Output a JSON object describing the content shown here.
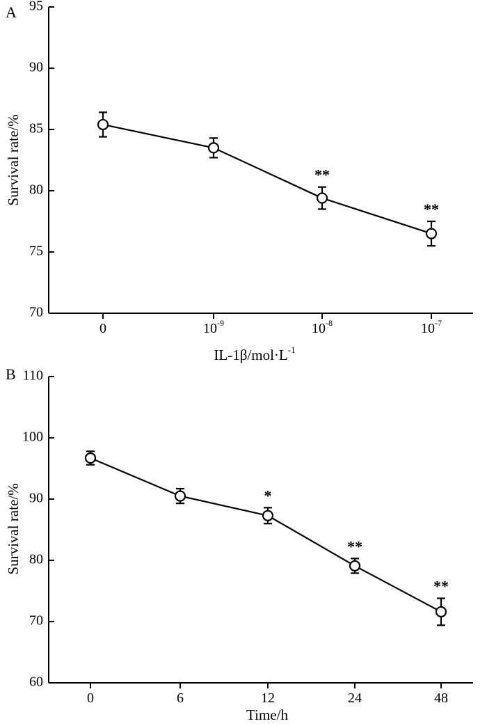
{
  "chart_data": [
    {
      "panel": "A",
      "type": "line",
      "ylabel": "Survival rate/%",
      "xlabel": "IL-1β/mol·L",
      "xlabel_sup": "-1",
      "categories": [
        {
          "base": "0",
          "sup": ""
        },
        {
          "base": "10",
          "sup": "-9"
        },
        {
          "base": "10",
          "sup": "-8"
        },
        {
          "base": "10",
          "sup": "-7"
        }
      ],
      "series": [
        {
          "name": "Survival rate",
          "values": [
            85.4,
            83.5,
            79.4,
            76.5
          ],
          "errors": [
            1.0,
            0.8,
            0.9,
            1.0
          ],
          "significance": [
            "",
            "",
            "**",
            "**"
          ]
        }
      ],
      "ylim": [
        70,
        95
      ],
      "yticks": [
        70,
        75,
        80,
        85,
        90,
        95
      ]
    },
    {
      "panel": "B",
      "type": "line",
      "ylabel": "Survival rate/%",
      "xlabel": "Time/h",
      "xlabel_sup": "",
      "categories": [
        {
          "base": "0",
          "sup": ""
        },
        {
          "base": "6",
          "sup": ""
        },
        {
          "base": "12",
          "sup": ""
        },
        {
          "base": "24",
          "sup": ""
        },
        {
          "base": "48",
          "sup": ""
        }
      ],
      "series": [
        {
          "name": "Survival rate",
          "values": [
            96.7,
            90.5,
            87.3,
            79.1,
            71.6
          ],
          "errors": [
            1.1,
            1.2,
            1.3,
            1.2,
            2.2
          ],
          "significance": [
            "",
            "",
            "*",
            "**",
            "**"
          ]
        }
      ],
      "ylim": [
        60,
        110
      ],
      "yticks": [
        60,
        70,
        80,
        90,
        100,
        110
      ]
    }
  ]
}
